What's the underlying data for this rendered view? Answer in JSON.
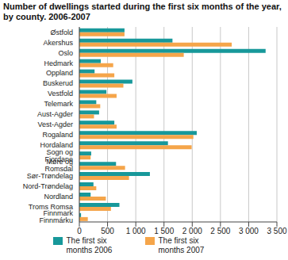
{
  "chart_data": {
    "type": "bar",
    "orientation": "horizontal",
    "title": "Number of dwellings started during the first six months of the year, by county. 2006-2007",
    "categories": [
      "Østfold",
      "Akershus",
      "Oslo",
      "Hedmark",
      "Oppland",
      "Buskerud",
      "Vestfold",
      "Telemark",
      "Aust-Agder",
      "Vest-Agder",
      "Rogaland",
      "Hordaland",
      "Sogn og Fjordane",
      "Møre og Romsdal",
      "Sør-Trøndelag",
      "Nord-Trøndelag",
      "Nordland",
      "Troms Romsa",
      "Finnmark Finnmárku"
    ],
    "series": [
      {
        "name": "The first six months 2006",
        "color": "#17989a",
        "values": [
          800,
          1650,
          3300,
          380,
          270,
          940,
          480,
          300,
          350,
          620,
          2080,
          1570,
          210,
          650,
          1250,
          250,
          200,
          710,
          30
        ]
      },
      {
        "name": "The first six months 2007",
        "color": "#f5a54a",
        "values": [
          800,
          2700,
          1850,
          600,
          620,
          780,
          660,
          370,
          260,
          660,
          2020,
          1990,
          200,
          810,
          880,
          300,
          470,
          560,
          150
        ]
      }
    ],
    "xlim": [
      0,
      3500
    ],
    "xticks": [
      0,
      500,
      {
        "value": 1000,
        "label": "1 000"
      },
      {
        "value": 1500,
        "label": "1 500"
      },
      {
        "value": 2000,
        "label": "2 000"
      },
      {
        "value": 2500,
        "label": "2 500"
      },
      {
        "value": 3000,
        "label": "3 000"
      },
      {
        "value": 3500,
        "label": "3 500"
      }
    ],
    "grid": true,
    "legend": "bottom"
  }
}
